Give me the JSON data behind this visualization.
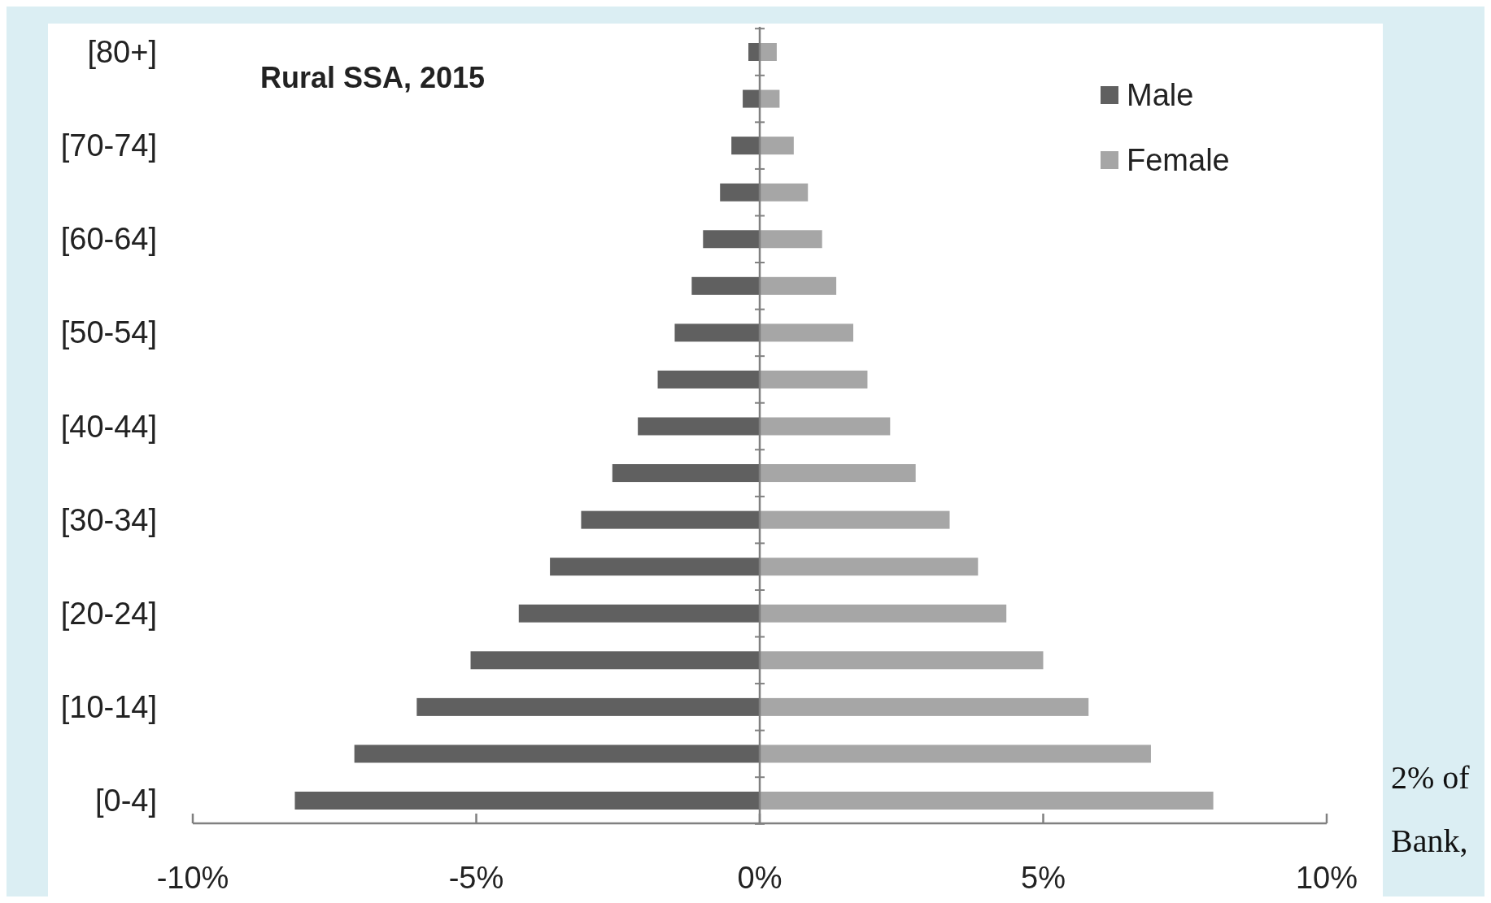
{
  "chart_data": {
    "type": "bar",
    "orientation": "horizontal",
    "stacked": true,
    "title": "Rural SSA, 2015",
    "categories": [
      "[80+]",
      null,
      "[70-74]",
      null,
      "[60-64]",
      null,
      "[50-54]",
      null,
      "[40-44]",
      null,
      "[30-34]",
      null,
      "[20-24]",
      null,
      "[10-14]",
      null,
      "[0-4]"
    ],
    "series": [
      {
        "name": "Male",
        "color": "#606060",
        "values": [
          -0.2,
          -0.3,
          -0.5,
          -0.7,
          -1.0,
          -1.2,
          -1.5,
          -1.8,
          -2.15,
          -2.6,
          -3.15,
          -3.7,
          -4.25,
          -5.1,
          -6.05,
          -7.15,
          -8.2
        ]
      },
      {
        "name": "Female",
        "color": "#a6a6a6",
        "values": [
          0.3,
          0.35,
          0.6,
          0.85,
          1.1,
          1.35,
          1.65,
          1.9,
          2.3,
          2.75,
          3.35,
          3.85,
          4.35,
          5.0,
          5.8,
          6.9,
          8.0
        ]
      }
    ],
    "xlim": [
      -10,
      10
    ],
    "xticks": [
      {
        "value": -10,
        "label": "-10%"
      },
      {
        "value": -5,
        "label": "-5%"
      },
      {
        "value": 0,
        "label": "0%"
      },
      {
        "value": 5,
        "label": "5%"
      },
      {
        "value": 10,
        "label": "10%"
      }
    ],
    "legend": "top right",
    "annotations": [
      "2% of",
      "Bank,"
    ]
  }
}
